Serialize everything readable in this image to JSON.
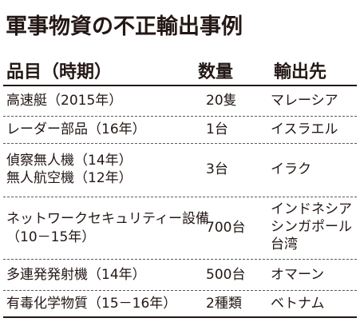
{
  "title": "軍事物資の不正輸出事例",
  "headers": {
    "item": "品目（時期）",
    "quantity": "数量",
    "destination": "輸出先"
  },
  "rows": [
    {
      "item": [
        "高速艇（2015年）"
      ],
      "quantity": "20隻",
      "destination": [
        "マレーシア"
      ]
    },
    {
      "item": [
        "レーダー部品（16年）"
      ],
      "quantity": "1台",
      "destination": [
        "イスラエル"
      ]
    },
    {
      "item": [
        "偵察無人機（14年）",
        "無人航空機（12年）"
      ],
      "quantity": "3台",
      "destination": [
        "イラク"
      ]
    },
    {
      "item": [
        "ネットワークセキュリティー設備",
        "（10－15年）"
      ],
      "quantity": "700台",
      "destination": [
        "インドネシア",
        "シンガポール",
        "台湾"
      ]
    },
    {
      "item": [
        "多連発発射機（14年）"
      ],
      "quantity": "500台",
      "destination": [
        "オマーン"
      ]
    },
    {
      "item": [
        "有毒化学物質（15－16年）"
      ],
      "quantity": "2種類",
      "destination": [
        "ベトナム"
      ]
    }
  ]
}
